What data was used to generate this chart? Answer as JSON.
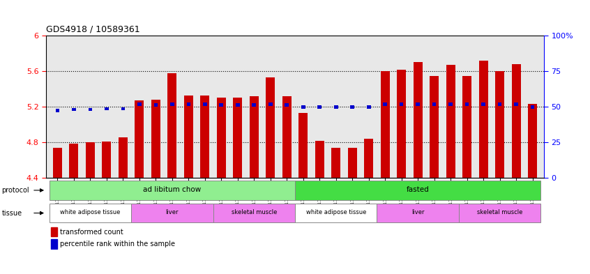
{
  "title": "GDS4918 / 10589361",
  "samples": [
    "GSM1131278",
    "GSM1131279",
    "GSM1131280",
    "GSM1131281",
    "GSM1131282",
    "GSM1131283",
    "GSM1131284",
    "GSM1131285",
    "GSM1131286",
    "GSM1131287",
    "GSM1131288",
    "GSM1131289",
    "GSM1131290",
    "GSM1131291",
    "GSM1131292",
    "GSM1131293",
    "GSM1131294",
    "GSM1131295",
    "GSM1131296",
    "GSM1131297",
    "GSM1131298",
    "GSM1131299",
    "GSM1131300",
    "GSM1131301",
    "GSM1131302",
    "GSM1131303",
    "GSM1131304",
    "GSM1131305",
    "GSM1131306",
    "GSM1131307"
  ],
  "bar_values": [
    4.74,
    4.79,
    4.8,
    4.81,
    4.86,
    5.27,
    5.28,
    5.58,
    5.33,
    5.33,
    5.3,
    5.3,
    5.32,
    5.53,
    5.32,
    5.13,
    4.82,
    4.74,
    4.74,
    4.84,
    5.6,
    5.62,
    5.7,
    5.55,
    5.67,
    5.55,
    5.72,
    5.6,
    5.68,
    5.23
  ],
  "percentile_values": [
    5.16,
    5.17,
    5.17,
    5.18,
    5.18,
    5.23,
    5.22,
    5.23,
    5.23,
    5.23,
    5.22,
    5.22,
    5.22,
    5.23,
    5.22,
    5.2,
    5.2,
    5.2,
    5.2,
    5.2,
    5.23,
    5.23,
    5.23,
    5.23,
    5.23,
    5.23,
    5.23,
    5.23,
    5.23,
    5.2
  ],
  "bar_color": "#cc0000",
  "dot_color": "#0000cc",
  "ymin": 4.4,
  "ymax": 6.0,
  "yticks": [
    4.4,
    4.8,
    5.2,
    5.6,
    6.0
  ],
  "ytick_labels": [
    "4.4",
    "4.8",
    "5.2",
    "5.6",
    "6"
  ],
  "right_ytick_percents": [
    0,
    25,
    50,
    75,
    100
  ],
  "right_ytick_labels": [
    "0",
    "25",
    "50",
    "75",
    "100%"
  ],
  "protocol_groups": [
    {
      "label": "ad libitum chow",
      "start": 0,
      "end": 14,
      "color": "#90ee90"
    },
    {
      "label": "fasted",
      "start": 15,
      "end": 29,
      "color": "#44dd44"
    }
  ],
  "tissue_groups": [
    {
      "label": "white adipose tissue",
      "start": 0,
      "end": 4,
      "color": "#ffffff"
    },
    {
      "label": "liver",
      "start": 5,
      "end": 9,
      "color": "#ee82ee"
    },
    {
      "label": "skeletal muscle",
      "start": 10,
      "end": 14,
      "color": "#ee82ee"
    },
    {
      "label": "white adipose tissue",
      "start": 15,
      "end": 19,
      "color": "#ffffff"
    },
    {
      "label": "liver",
      "start": 20,
      "end": 24,
      "color": "#ee82ee"
    },
    {
      "label": "skeletal muscle",
      "start": 25,
      "end": 29,
      "color": "#ee82ee"
    }
  ],
  "legend_red_label": "transformed count",
  "legend_blue_label": "percentile rank within the sample",
  "bar_width": 0.55
}
